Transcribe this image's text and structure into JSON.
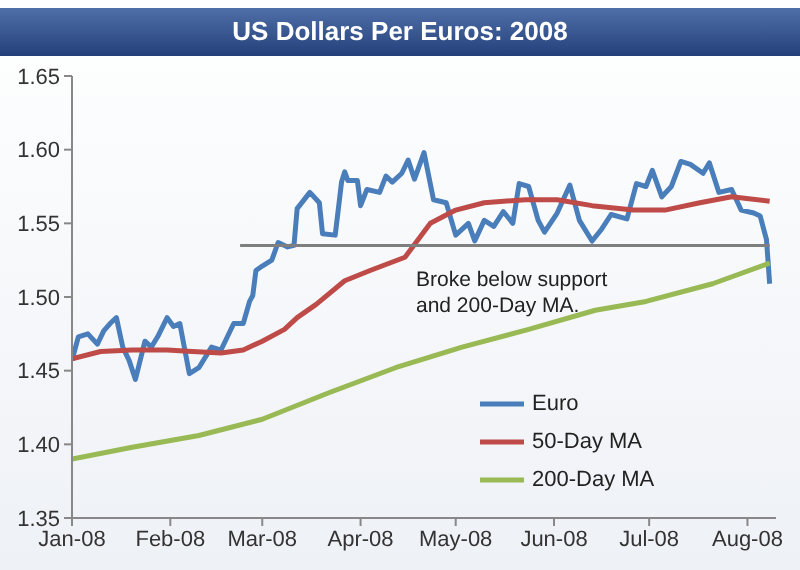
{
  "chart_data": {
    "type": "line",
    "title": "US Dollars Per Euros: 2008",
    "x": [
      "2008-01-01",
      "2008-01-03",
      "2008-01-06",
      "2008-01-09",
      "2008-01-11",
      "2008-01-13",
      "2008-01-15",
      "2008-01-17",
      "2008-01-19",
      "2008-01-21",
      "2008-01-24",
      "2008-01-26",
      "2008-01-28",
      "2008-01-31",
      "2008-02-02",
      "2008-02-04",
      "2008-02-07",
      "2008-02-10",
      "2008-02-14",
      "2008-02-17",
      "2008-02-19",
      "2008-02-21",
      "2008-02-24",
      "2008-02-26",
      "2008-02-27",
      "2008-02-28",
      "2008-03-01",
      "2008-03-04",
      "2008-03-06",
      "2008-03-09",
      "2008-03-11",
      "2008-03-12",
      "2008-03-16",
      "2008-03-19",
      "2008-03-20",
      "2008-03-24",
      "2008-03-26",
      "2008-03-27",
      "2008-03-28",
      "2008-03-31",
      "2008-04-01",
      "2008-04-03",
      "2008-04-07",
      "2008-04-09",
      "2008-04-11",
      "2008-04-14",
      "2008-04-16",
      "2008-04-18",
      "2008-04-21",
      "2008-04-24",
      "2008-04-28",
      "2008-05-01",
      "2008-05-05",
      "2008-05-07",
      "2008-05-10",
      "2008-05-13",
      "2008-05-16",
      "2008-05-19",
      "2008-05-21",
      "2008-05-24",
      "2008-05-27",
      "2008-05-29",
      "2008-06-02",
      "2008-06-06",
      "2008-06-09",
      "2008-06-13",
      "2008-06-16",
      "2008-06-19",
      "2008-06-24",
      "2008-06-27",
      "2008-06-30",
      "2008-07-02",
      "2008-07-05",
      "2008-07-08",
      "2008-07-11",
      "2008-07-14",
      "2008-07-18",
      "2008-07-20",
      "2008-07-23",
      "2008-07-27",
      "2008-07-30",
      "2008-08-03",
      "2008-08-05",
      "2008-08-07",
      "2008-08-08"
    ],
    "series": [
      {
        "name": "Euro",
        "color": "#4a7ebb",
        "values": [
          1.457,
          1.473,
          1.475,
          1.468,
          1.477,
          1.482,
          1.486,
          1.466,
          1.457,
          1.444,
          1.47,
          1.466,
          1.473,
          1.486,
          1.48,
          1.482,
          1.448,
          1.452,
          1.466,
          1.464,
          1.473,
          1.482,
          1.482,
          1.497,
          1.501,
          1.518,
          1.521,
          1.525,
          1.537,
          1.534,
          1.535,
          1.56,
          1.571,
          1.564,
          1.543,
          1.542,
          1.578,
          1.585,
          1.579,
          1.579,
          1.562,
          1.573,
          1.571,
          1.582,
          1.578,
          1.584,
          1.593,
          1.58,
          1.598,
          1.566,
          1.564,
          1.542,
          1.55,
          1.538,
          1.552,
          1.548,
          1.558,
          1.55,
          1.577,
          1.575,
          1.552,
          1.544,
          1.557,
          1.576,
          1.552,
          1.538,
          1.546,
          1.556,
          1.553,
          1.577,
          1.575,
          1.586,
          1.568,
          1.575,
          1.592,
          1.59,
          1.584,
          1.591,
          1.571,
          1.573,
          1.559,
          1.557,
          1.555,
          1.539,
          1.509
        ]
      },
      {
        "name": "50-Day MA",
        "color": "#be4b48",
        "x": [
          "2008-01-01",
          "2008-01-10",
          "2008-01-20",
          "2008-01-31",
          "2008-02-08",
          "2008-02-17",
          "2008-02-24",
          "2008-03-01",
          "2008-03-08",
          "2008-03-12",
          "2008-03-18",
          "2008-03-27",
          "2008-04-04",
          "2008-04-15",
          "2008-04-23",
          "2008-05-01",
          "2008-05-10",
          "2008-05-23",
          "2008-06-02",
          "2008-06-13",
          "2008-06-26",
          "2008-07-06",
          "2008-07-17",
          "2008-07-27",
          "2008-08-08"
        ],
        "values": [
          1.458,
          1.463,
          1.464,
          1.464,
          1.463,
          1.462,
          1.464,
          1.47,
          1.478,
          1.486,
          1.495,
          1.511,
          1.518,
          1.527,
          1.55,
          1.559,
          1.564,
          1.566,
          1.566,
          1.562,
          1.559,
          1.559,
          1.564,
          1.568,
          1.565
        ]
      },
      {
        "name": "200-Day MA",
        "color": "#98b954",
        "x": [
          "2008-01-01",
          "2008-01-20",
          "2008-02-10",
          "2008-03-01",
          "2008-03-22",
          "2008-04-12",
          "2008-05-03",
          "2008-05-24",
          "2008-06-14",
          "2008-06-30",
          "2008-07-21",
          "2008-08-08"
        ],
        "values": [
          1.39,
          1.398,
          1.406,
          1.417,
          1.435,
          1.452,
          1.466,
          1.478,
          1.491,
          1.497,
          1.509,
          1.523
        ]
      },
      {
        "color": "#7f7f7f",
        "x": [
          "2008-02-23",
          "2008-08-08"
        ],
        "values": [
          1.535,
          1.535
        ]
      }
    ],
    "xlim": [
      "2008-01-01",
      "2008-08-10"
    ],
    "xticks": [
      {
        "value": "2008-01-01",
        "label": "Jan-08"
      },
      {
        "value": "2008-02-01",
        "label": "Feb-08"
      },
      {
        "value": "2008-03-01",
        "label": "Mar-08"
      },
      {
        "value": "2008-04-01",
        "label": "Apr-08"
      },
      {
        "value": "2008-05-01",
        "label": "May-08"
      },
      {
        "value": "2008-06-01",
        "label": "Jun-08"
      },
      {
        "value": "2008-07-01",
        "label": "Jul-08"
      },
      {
        "value": "2008-08-01",
        "label": "Aug-08"
      }
    ],
    "ylim": [
      1.35,
      1.65
    ],
    "yticks": [
      1.35,
      {
        "value": 1.4,
        "label": "1.40"
      },
      1.45,
      {
        "value": 1.5,
        "label": "1.50"
      },
      1.55,
      {
        "value": 1.6,
        "label": "1.60"
      },
      1.65
    ],
    "annotations": [
      "Broke below support and 200-Day MA."
    ],
    "legend": "bottom right",
    "grid": false,
    "marker": "none",
    "line_style": "solid"
  }
}
